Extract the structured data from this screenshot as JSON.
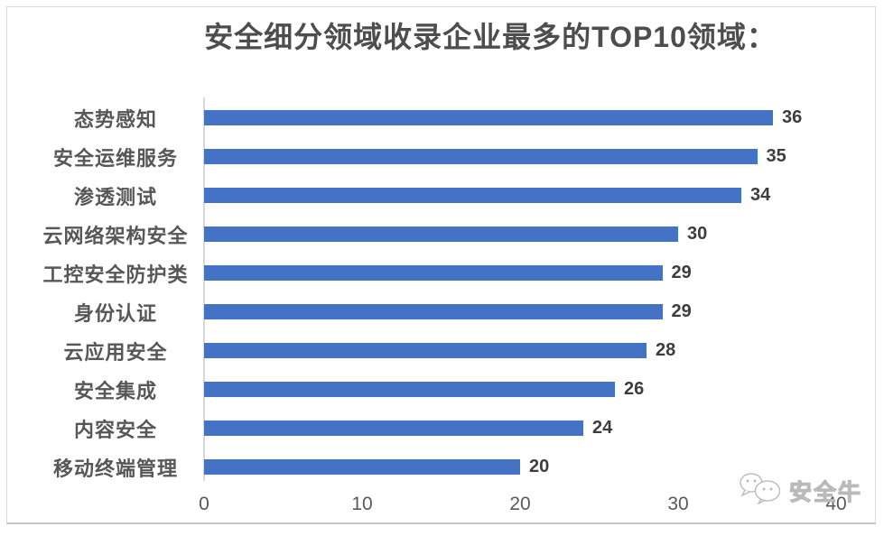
{
  "chart_data": {
    "type": "bar",
    "orientation": "horizontal",
    "title": "安全细分领域收录企业最多的TOP10领域：",
    "categories": [
      "态势感知",
      "安全运维服务",
      "渗透测试",
      "云网络架构安全",
      "工控安全防护类",
      "身份认证",
      "云应用安全",
      "安全集成",
      "内容安全",
      "移动终端管理"
    ],
    "values": [
      36,
      35,
      34,
      30,
      29,
      29,
      28,
      26,
      24,
      20
    ],
    "xlabel": "",
    "ylabel": "",
    "xlim": [
      0,
      40
    ],
    "x_ticks": [
      0,
      10,
      20,
      30,
      40
    ],
    "grid": false,
    "legend": "none",
    "value_labels_shown": true,
    "bar_color": "#4472C4"
  },
  "watermark": {
    "icon": "wechat-icon",
    "text": "安全牛"
  },
  "colors": {
    "bar": "#4472C4",
    "title_text": "#4d4d4d",
    "category_text": "#575757",
    "value_text": "#3d3d3d",
    "tick_text": "#595959",
    "axis_line": "#d9d9d9",
    "frame_border": "#d9d9d9",
    "watermark": "#b9b9b9"
  }
}
